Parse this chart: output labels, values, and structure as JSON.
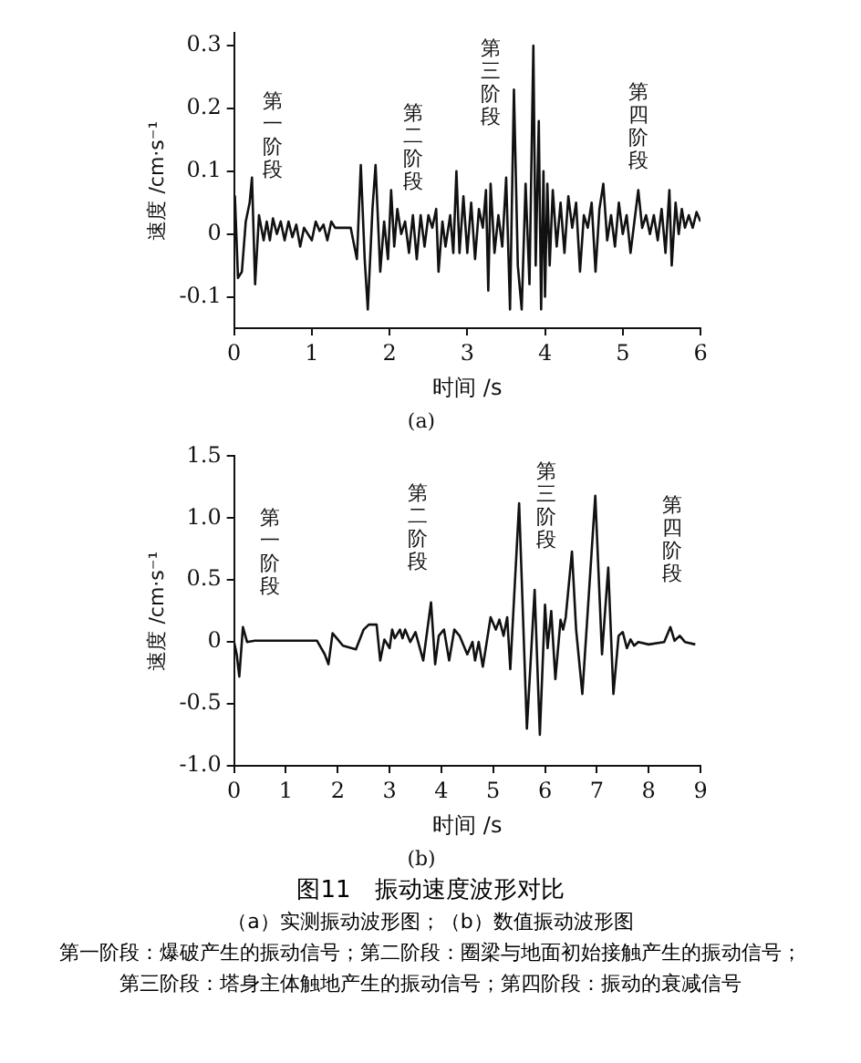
{
  "chart_data": [
    {
      "type": "line",
      "title": "(a)",
      "xlabel": "时间 /s",
      "ylabel": "速度 /cm·s⁻¹",
      "grid": false,
      "legend": false,
      "xlim": [
        0,
        6
      ],
      "xticks": [
        0,
        1,
        2,
        3,
        4,
        5,
        6
      ],
      "ylim": [
        -0.15,
        0.32
      ],
      "yticks": [
        -0.1,
        0,
        0.1,
        0.2,
        0.3
      ],
      "series": [
        {
          "color": "#111111",
          "x": [
            0,
            0.01,
            0.05,
            0.1,
            0.15,
            0.2,
            0.23,
            0.27,
            0.32,
            0.38,
            0.42,
            0.46,
            0.5,
            0.55,
            0.6,
            0.65,
            0.7,
            0.75,
            0.8,
            0.85,
            0.9,
            0.95,
            1.0,
            1.05,
            1.1,
            1.15,
            1.2,
            1.25,
            1.3,
            1.5,
            1.58,
            1.63,
            1.68,
            1.72,
            1.78,
            1.82,
            1.88,
            1.93,
            1.98,
            2.02,
            2.06,
            2.1,
            2.15,
            2.2,
            2.25,
            2.3,
            2.35,
            2.4,
            2.45,
            2.5,
            2.55,
            2.6,
            2.63,
            2.68,
            2.72,
            2.78,
            2.82,
            2.86,
            2.9,
            2.95,
            3.0,
            3.05,
            3.1,
            3.15,
            3.2,
            3.24,
            3.27,
            3.3,
            3.35,
            3.4,
            3.45,
            3.5,
            3.55,
            3.6,
            3.65,
            3.7,
            3.75,
            3.8,
            3.85,
            3.88,
            3.92,
            3.95,
            3.98,
            4.0,
            4.03,
            4.06,
            4.1,
            4.15,
            4.2,
            4.25,
            4.3,
            4.35,
            4.4,
            4.45,
            4.5,
            4.55,
            4.6,
            4.65,
            4.7,
            4.75,
            4.8,
            4.85,
            4.9,
            4.95,
            5.0,
            5.05,
            5.1,
            5.15,
            5.2,
            5.25,
            5.3,
            5.35,
            5.4,
            5.45,
            5.5,
            5.55,
            5.6,
            5.63,
            5.68,
            5.72,
            5.76,
            5.8,
            5.85,
            5.9,
            5.95,
            6.0
          ],
          "values": [
            0,
            0.06,
            -0.07,
            -0.06,
            0.02,
            0.05,
            0.09,
            -0.08,
            0.03,
            -0.01,
            0.02,
            -0.01,
            0.025,
            0,
            0.02,
            -0.01,
            0.02,
            -0.005,
            0.015,
            -0.02,
            0.01,
            0,
            -0.01,
            0.02,
            0.005,
            0.015,
            -0.01,
            0.02,
            0.01,
            0.01,
            -0.04,
            0.11,
            -0.04,
            -0.12,
            0.04,
            0.11,
            -0.06,
            0.02,
            -0.04,
            0.07,
            -0.02,
            0.04,
            0,
            0.02,
            -0.03,
            0.03,
            -0.04,
            0.03,
            -0.02,
            0.03,
            0.01,
            0.04,
            -0.06,
            0.02,
            -0.02,
            0.03,
            -0.03,
            0.1,
            -0.03,
            0.06,
            -0.03,
            0.05,
            -0.04,
            0.04,
            0.01,
            0.07,
            -0.09,
            0.08,
            -0.03,
            0.03,
            -0.02,
            0.09,
            -0.12,
            0.23,
            -0.05,
            -0.12,
            0.08,
            -0.08,
            0.3,
            -0.05,
            0.18,
            -0.12,
            0.1,
            -0.1,
            0.08,
            -0.05,
            0.07,
            -0.02,
            0.05,
            -0.03,
            0.06,
            0.01,
            0.05,
            -0.06,
            0.03,
            0.01,
            0.05,
            -0.06,
            0.04,
            0.08,
            -0.01,
            0.03,
            -0.02,
            0.05,
            0,
            0.03,
            -0.03,
            0.02,
            0.07,
            0.01,
            0.03,
            0,
            0.03,
            -0.01,
            0.04,
            -0.03,
            0.07,
            -0.05,
            0.05,
            0,
            0.04,
            0.01,
            0.03,
            0.01,
            0.035,
            0.02
          ]
        }
      ],
      "annotations": [
        "第一阶段",
        "第二阶段",
        "第三阶段",
        "第四阶段"
      ]
    },
    {
      "type": "line",
      "title": "(b)",
      "xlabel": "时间 /s",
      "ylabel": "速度 /cm·s⁻¹",
      "grid": false,
      "legend": false,
      "xlim": [
        0,
        9
      ],
      "xticks": [
        0,
        1,
        2,
        3,
        4,
        5,
        6,
        7,
        8,
        9
      ],
      "ylim": [
        -1.0,
        1.5
      ],
      "yticks": [
        {
          "value": -1,
          "label": "-1.0"
        },
        -0.5,
        0,
        0.5,
        {
          "value": 1,
          "label": "1.0"
        },
        1.5
      ],
      "series": [
        {
          "color": "#111111",
          "x": [
            0,
            0.05,
            0.1,
            0.17,
            0.25,
            0.4,
            1.6,
            1.75,
            1.82,
            1.9,
            2.0,
            2.1,
            2.35,
            2.5,
            2.6,
            2.75,
            2.82,
            2.9,
            3.0,
            3.05,
            3.1,
            3.2,
            3.25,
            3.3,
            3.4,
            3.5,
            3.65,
            3.8,
            3.88,
            3.95,
            4.05,
            4.15,
            4.25,
            4.35,
            4.5,
            4.6,
            4.65,
            4.72,
            4.8,
            4.95,
            5.05,
            5.12,
            5.2,
            5.27,
            5.33,
            5.5,
            5.65,
            5.8,
            5.9,
            6.0,
            6.05,
            6.12,
            6.2,
            6.3,
            6.35,
            6.4,
            6.52,
            6.6,
            6.72,
            6.97,
            7.1,
            7.22,
            7.32,
            7.42,
            7.5,
            7.58,
            7.65,
            7.72,
            7.8,
            8.0,
            8.3,
            8.42,
            8.5,
            8.6,
            8.7,
            8.9
          ],
          "values": [
            0,
            -0.1,
            -0.28,
            0.12,
            0,
            0.01,
            0.01,
            -0.1,
            -0.18,
            0.07,
            0.02,
            -0.03,
            -0.06,
            0.1,
            0.14,
            0.14,
            -0.15,
            0.02,
            -0.05,
            0.1,
            0.03,
            0.1,
            0.03,
            0.1,
            0,
            0.08,
            -0.15,
            0.32,
            -0.18,
            0.05,
            0.1,
            -0.15,
            0.1,
            0.05,
            -0.1,
            0,
            -0.15,
            0,
            -0.2,
            0.2,
            0.1,
            0.18,
            0.05,
            0.2,
            -0.22,
            1.12,
            -0.7,
            0.42,
            -0.75,
            0.3,
            -0.05,
            0.25,
            -0.3,
            0.18,
            0.1,
            0.2,
            0.73,
            0.1,
            -0.42,
            1.18,
            -0.1,
            0.6,
            -0.42,
            0.05,
            0.08,
            -0.05,
            0.02,
            -0.03,
            0,
            -0.02,
            0,
            0.12,
            0.01,
            0.05,
            0,
            -0.02
          ]
        }
      ],
      "annotations": [
        "第一阶段",
        "第二阶段",
        "第三阶段",
        "第四阶段",
        "图11　振动速度波形对比",
        "（a）实测振动波形图；（b）数值振动波形图",
        "第一阶段：爆破产生的振动信号；第二阶段：圈梁与地面初始接触产生的振动信号；",
        "第三阶段：塔身主体触地产生的振动信号；第四阶段：振动的衰减信号"
      ]
    }
  ]
}
